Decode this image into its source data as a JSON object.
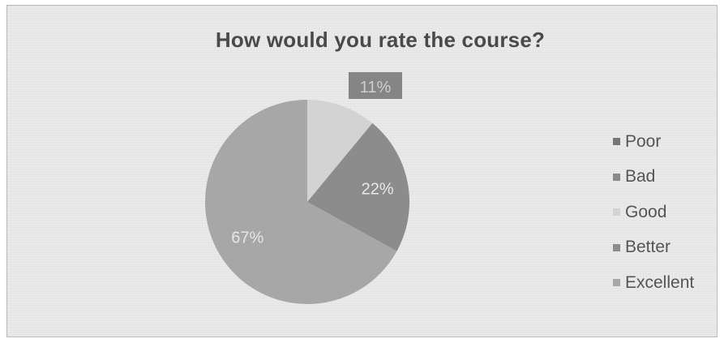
{
  "chart_data": {
    "type": "pie",
    "title": "How would you rate the course?",
    "categories": [
      "Poor",
      "Bad",
      "Good",
      "Better",
      "Excellent"
    ],
    "values": [
      0,
      0,
      11,
      22,
      67
    ],
    "data_labels": [
      "",
      "",
      "11%",
      "22%",
      "67%"
    ],
    "colors": [
      "#767676",
      "#8a8a8a",
      "#d3d3d3",
      "#8c8c8c",
      "#a7a7a7"
    ],
    "legend": "right"
  }
}
